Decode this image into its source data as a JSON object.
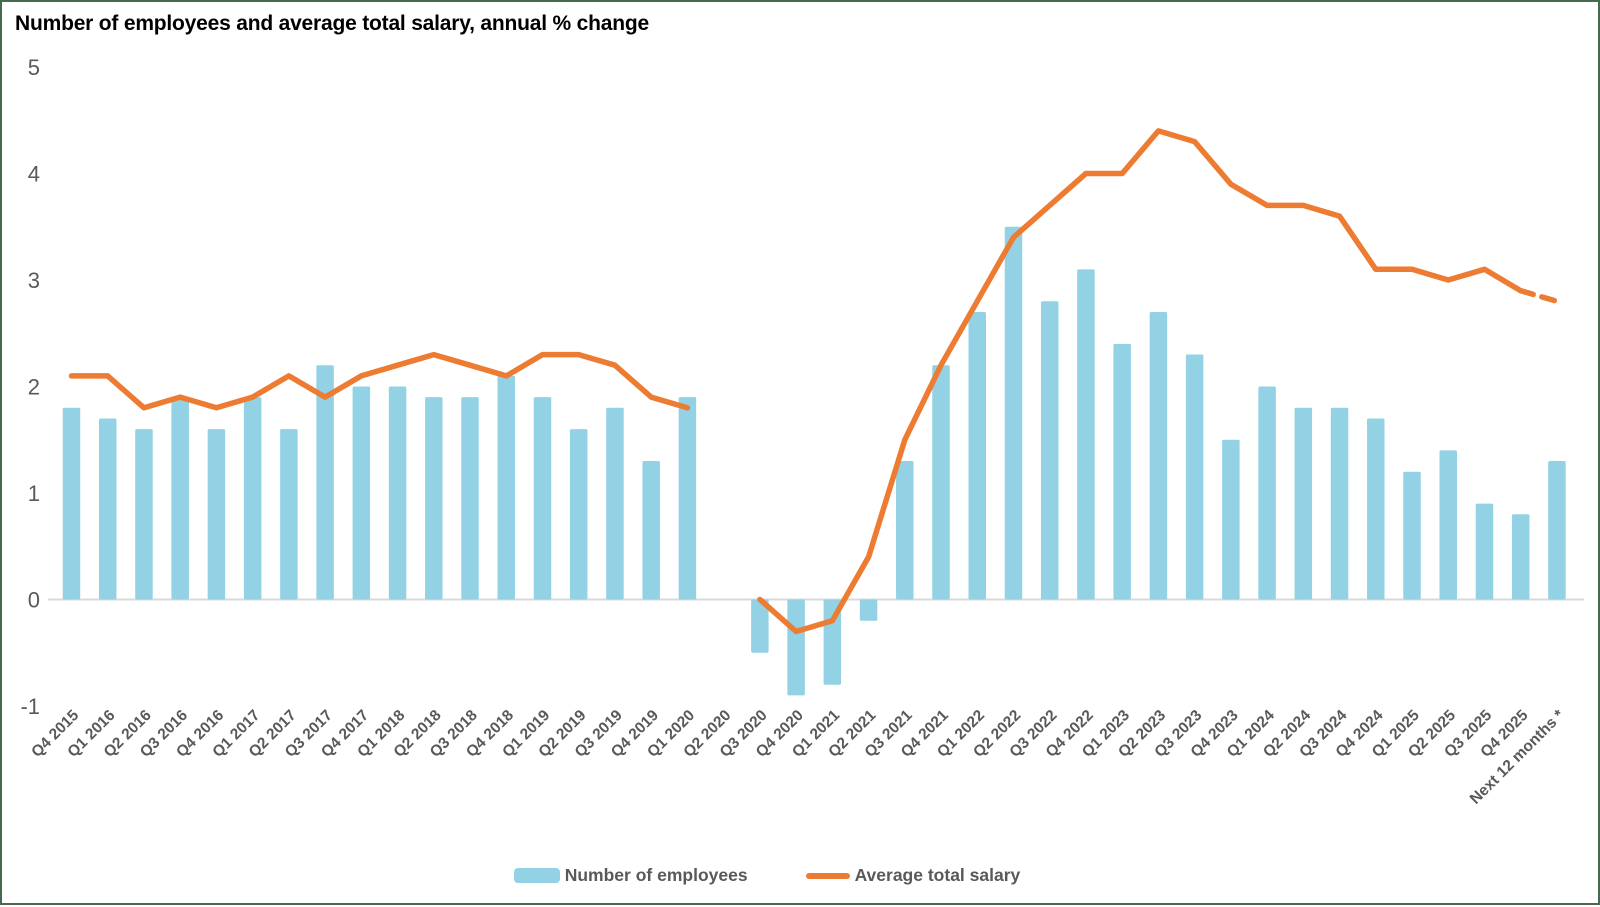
{
  "title": "Number of employees and average total salary, annual % change",
  "frame": {
    "border_color": "#47694F",
    "background": "#FFFFFF"
  },
  "colors": {
    "bar": "#92D2E4",
    "line": "#ED7B31",
    "axis_text": "#595959",
    "zero_gridline": "#D9D9D9",
    "title_text": "#000000"
  },
  "legend": {
    "items": [
      {
        "label": "Number of employees",
        "type": "bar",
        "color": "#92D2E4"
      },
      {
        "label": "Average total salary",
        "type": "line",
        "color": "#ED7B31"
      }
    ]
  },
  "chart_data": {
    "type": "bar",
    "subtype": "bar-and-line-combo",
    "title": "Number of employees and average total salary, annual % change",
    "xlabel": "",
    "ylabel": "",
    "ylim": [
      -1,
      5
    ],
    "y_ticks": [
      5,
      4,
      3,
      2,
      1,
      0,
      -1
    ],
    "grid": "zero-line-only",
    "legend_position": "bottom",
    "x_label_rotation": 45,
    "missing_data_note": "null values = no bar/line point plotted (gap at Q2 2020)",
    "categories": [
      "Q4 2015",
      "Q1 2016",
      "Q2 2016",
      "Q3 2016",
      "Q4 2016",
      "Q1 2017",
      "Q2 2017",
      "Q3 2017",
      "Q4 2017",
      "Q1 2018",
      "Q2 2018",
      "Q3 2018",
      "Q4 2018",
      "Q1 2019",
      "Q2 2019",
      "Q3 2019",
      "Q4 2019",
      "Q1 2020",
      "Q2 2020",
      "Q3 2020",
      "Q4 2020",
      "Q1 2021",
      "Q2 2021",
      "Q3 2021",
      "Q4 2021",
      "Q1 2022",
      "Q2 2022",
      "Q3 2022",
      "Q4 2022",
      "Q1 2023",
      "Q2 2023",
      "Q3 2023",
      "Q4 2023",
      "Q1 2024",
      "Q2 2024",
      "Q3 2024",
      "Q4 2024",
      "Q1 2025",
      "Q2 2025",
      "Q3 2025",
      "Q4 2025",
      "Next 12 months *"
    ],
    "series": [
      {
        "name": "Number of employees",
        "type": "bar",
        "color": "#92D2E4",
        "values": [
          1.8,
          1.7,
          1.6,
          1.9,
          1.6,
          1.9,
          1.6,
          2.2,
          2.0,
          2.0,
          1.9,
          1.9,
          2.1,
          1.9,
          1.6,
          1.8,
          1.3,
          1.9,
          null,
          -0.5,
          -0.9,
          -0.8,
          -0.2,
          1.3,
          2.2,
          2.7,
          3.5,
          2.8,
          3.1,
          2.4,
          2.7,
          2.3,
          1.5,
          2.0,
          1.8,
          1.8,
          1.7,
          1.2,
          1.4,
          0.9,
          0.8,
          1.3
        ]
      },
      {
        "name": "Average total salary",
        "type": "line",
        "color": "#ED7B31",
        "dashed_from_index": 40,
        "values": [
          2.1,
          2.1,
          1.8,
          1.9,
          1.8,
          1.9,
          2.1,
          1.9,
          2.1,
          2.2,
          2.3,
          2.2,
          2.1,
          2.3,
          2.3,
          2.2,
          1.9,
          1.8,
          null,
          0.0,
          -0.3,
          -0.2,
          0.4,
          1.5,
          2.2,
          2.8,
          3.4,
          3.7,
          4.0,
          4.0,
          4.4,
          4.3,
          3.9,
          3.7,
          3.7,
          3.6,
          3.1,
          3.1,
          3.0,
          3.1,
          2.9,
          2.8
        ]
      }
    ]
  }
}
